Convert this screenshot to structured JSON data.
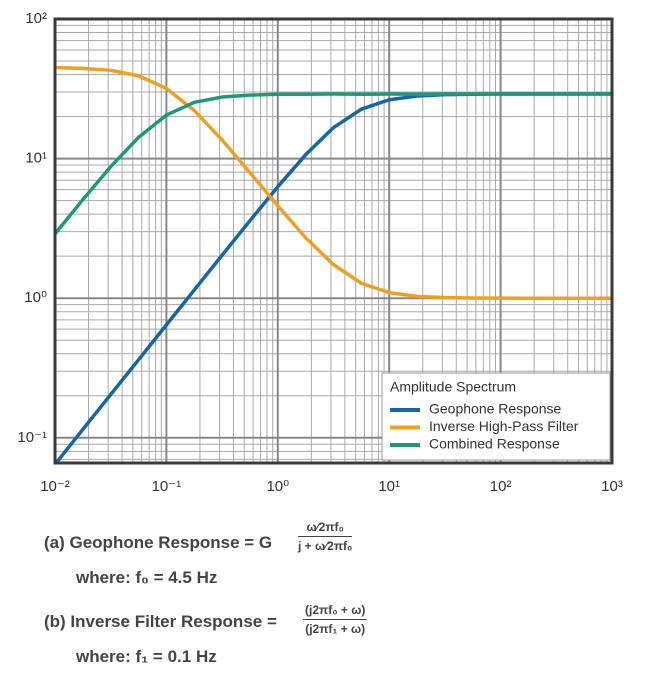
{
  "chart_data": {
    "type": "line",
    "x_scale": "log",
    "y_scale": "log",
    "grid": true,
    "minor_grid": true,
    "legend_title": "Amplitude Spectrum",
    "legend": "lower right",
    "x": [
      0.01,
      0.0178,
      0.0316,
      0.0562,
      0.1,
      0.178,
      0.316,
      0.562,
      1,
      1.78,
      3.16,
      5.62,
      10,
      17.8,
      31.6,
      56.2,
      100,
      178,
      316,
      562,
      1000
    ],
    "series": [
      {
        "name": "Geophone Response",
        "color": "#1565a8",
        "values": [
          0.0644,
          0.115,
          0.204,
          0.362,
          0.644,
          1.146,
          2.03,
          3.59,
          6.29,
          10.67,
          16.67,
          22.6,
          26.4,
          28.1,
          28.7,
          28.9,
          29.0,
          29.0,
          29.0,
          29.0,
          29.0
        ]
      },
      {
        "name": "Inverse High-Pass Filter",
        "color": "#f0a020",
        "values": [
          44.8,
          44.3,
          42.9,
          39.2,
          31.8,
          22.1,
          13.6,
          7.94,
          4.59,
          2.71,
          1.74,
          1.28,
          1.097,
          1.03,
          1.01,
          1.003,
          1.001,
          1.0,
          1.0,
          1.0,
          1.0
        ]
      },
      {
        "name": "Combined Response",
        "color": "#1a9a78",
        "values": [
          2.89,
          5.09,
          8.75,
          14.2,
          20.5,
          25.3,
          27.6,
          28.5,
          28.9,
          28.9,
          29.0,
          28.9,
          29.0,
          28.9,
          29.0,
          29.0,
          29.0,
          29.0,
          29.0,
          29.0,
          29.0
        ]
      }
    ],
    "xlim": [
      0.01,
      1000
    ],
    "xticks": [
      {
        "value": 0.01,
        "label": "10⁻²"
      },
      {
        "value": 0.1,
        "label": "10⁻¹"
      },
      {
        "value": 1,
        "label": "10⁰"
      },
      {
        "value": 10,
        "label": "10¹"
      },
      {
        "value": 100,
        "label": "10²"
      },
      {
        "value": 1000,
        "label": "10³"
      }
    ],
    "ylim": [
      0.066,
      100
    ],
    "yticks": [
      {
        "value": 0.1,
        "label": "10⁻¹"
      },
      {
        "value": 1,
        "label": "10⁰"
      },
      {
        "value": 10,
        "label": "10¹"
      },
      {
        "value": 100,
        "label": "10²"
      }
    ]
  },
  "formulas": [
    {
      "lhs": "(a) Geophone Response = G",
      "numerator": "ω⁄2πf₀",
      "denominator": "j + ω⁄2πf₀",
      "where": "where: f₀ = 4.5 Hz"
    },
    {
      "lhs": "(b) Inverse Filter Response =",
      "numerator": "(j2πf₀ + ω)",
      "denominator": "(j2πf₁ + ω)",
      "where": "where: f₁ = 0.1 Hz"
    }
  ]
}
